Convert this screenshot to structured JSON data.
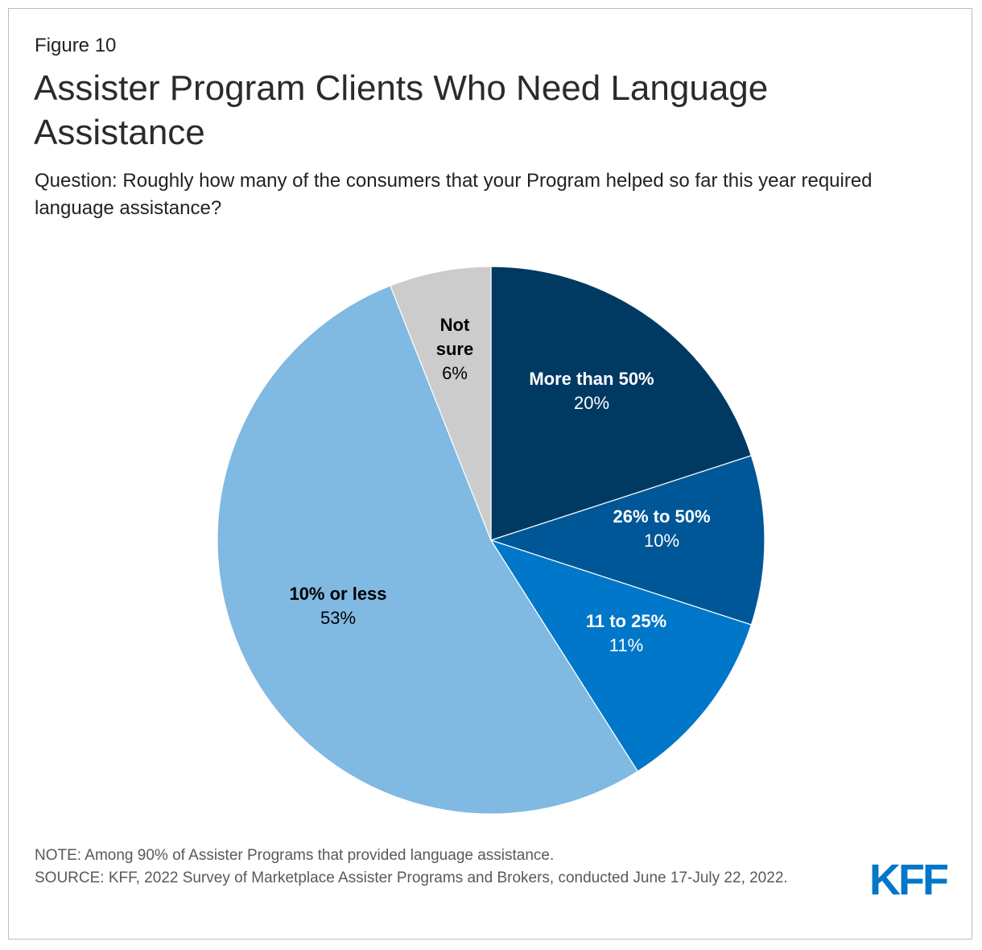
{
  "figure_label": "Figure 10",
  "title": "Assister Program Clients Who Need Language Assistance",
  "subtitle": "Question: Roughly how many of the consumers that your Program helped so far this year required language assistance?",
  "note": "NOTE: Among 90% of Assister Programs that provided language assistance.",
  "source": "SOURCE: KFF, 2022 Survey of Marketplace Assister Programs and Brokers, conducted June 17-July 22, 2022.",
  "logo": "KFF",
  "chart_data": {
    "type": "pie",
    "title": "Assister Program Clients Who Need Language Assistance",
    "slices": [
      {
        "label": "More than 50%",
        "label_lines": [
          "More than 50%"
        ],
        "value": 20,
        "value_label": "20%",
        "color": "#003a63",
        "text_color": "#ffffff"
      },
      {
        "label": "26% to 50%",
        "label_lines": [
          "26% to 50%"
        ],
        "value": 10,
        "value_label": "10%",
        "color": "#005797",
        "text_color": "#ffffff"
      },
      {
        "label": "11 to 25%",
        "label_lines": [
          "11 to 25%"
        ],
        "value": 11,
        "value_label": "11%",
        "color": "#0077c8",
        "text_color": "#ffffff"
      },
      {
        "label": "10% or less",
        "label_lines": [
          "10% or less"
        ],
        "value": 53,
        "value_label": "53%",
        "color": "#80b9e2",
        "text_color": "#000000"
      },
      {
        "label": "Not sure",
        "label_lines": [
          "Not",
          "sure"
        ],
        "value": 6,
        "value_label": "6%",
        "color": "#cccccc",
        "text_color": "#000000"
      }
    ]
  }
}
